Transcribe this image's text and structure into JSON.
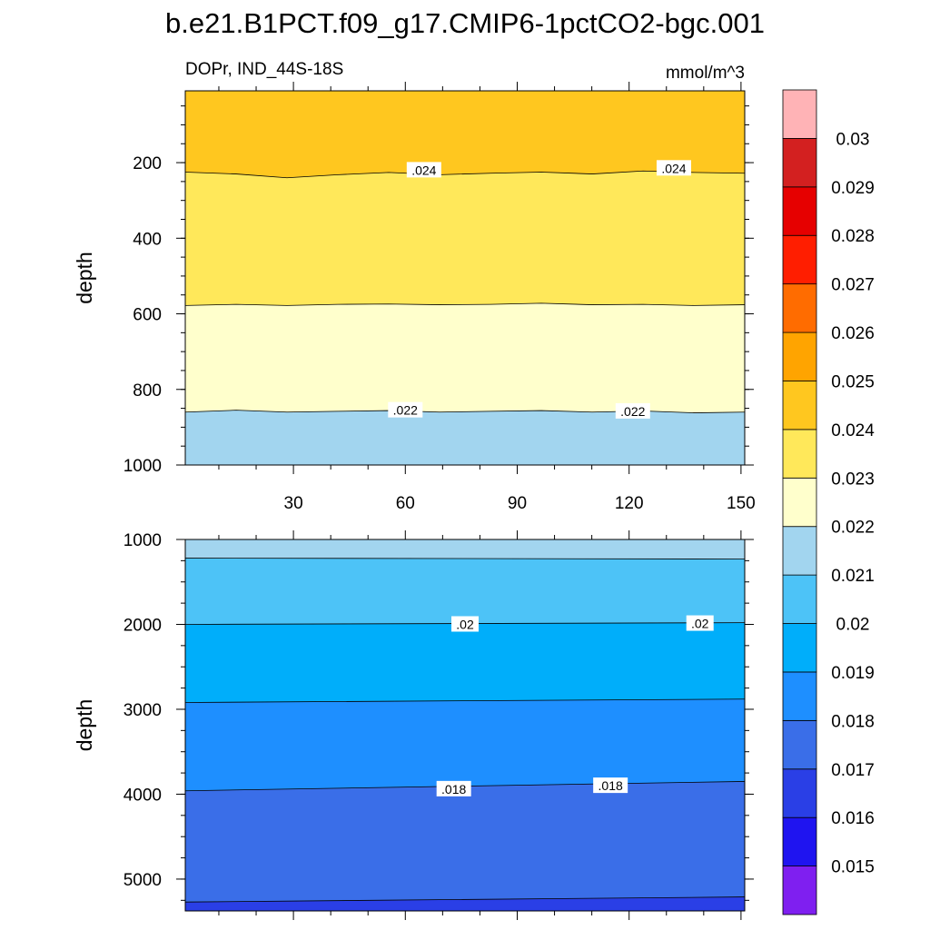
{
  "title": "b.e21.B1PCT.f09_g17.CMIP6-1pctCO2-bgc.001",
  "left_label": "DOPr, IND_44S-18S",
  "right_label": "mmol/m^3",
  "colors": {
    "levels": [
      "#7f1ff0",
      "#1f14f0",
      "#2a3fe6",
      "#3a6ee8",
      "#1e8fff",
      "#00aefa",
      "#4dc3f7",
      "#a2d5ef",
      "#ffffcc",
      "#ffe85a",
      "#ffc71f",
      "#ffa400",
      "#ff6c00",
      "#ff1e00",
      "#e60000",
      "#d32020",
      "#ffb3b6"
    ]
  },
  "chart_data": [
    {
      "type": "filled-contour",
      "panel": "top",
      "ylabel": "depth",
      "xlim": [
        1,
        151
      ],
      "ylim": [
        1000,
        10
      ],
      "x_ticks": [
        30,
        60,
        90,
        120,
        150
      ],
      "y_ticks": [
        200,
        400,
        600,
        800,
        1000
      ],
      "boundaries": [
        {
          "level": 0.024,
          "depth": [
            225,
            230,
            240,
            232,
            226,
            232,
            228,
            225,
            230,
            222,
            226,
            228
          ]
        },
        {
          "level": 0.023,
          "depth": [
            578,
            575,
            578,
            575,
            574,
            576,
            575,
            572,
            576,
            575,
            578,
            576
          ]
        },
        {
          "level": 0.022,
          "depth": [
            860,
            855,
            860,
            858,
            856,
            860,
            858,
            856,
            860,
            857,
            862,
            860
          ]
        }
      ],
      "contour_labels": [
        {
          "text": ".024",
          "x": 65,
          "y": 220
        },
        {
          "text": ".024",
          "x": 132,
          "y": 215
        },
        {
          "text": ".022",
          "x": 60,
          "y": 855
        },
        {
          "text": ".022",
          "x": 121,
          "y": 858
        }
      ]
    },
    {
      "type": "filled-contour",
      "panel": "bottom",
      "ylabel": "depth",
      "xlim": [
        1,
        151
      ],
      "ylim": [
        5375,
        1000
      ],
      "y_ticks": [
        1000,
        2000,
        3000,
        4000,
        5000
      ],
      "boundaries": [
        {
          "level": 0.021,
          "depth": [
            1220,
            1230
          ]
        },
        {
          "level": 0.02,
          "depth": [
            2000,
            1980
          ]
        },
        {
          "level": 0.019,
          "depth": [
            2920,
            2880
          ]
        },
        {
          "level": 0.018,
          "depth": [
            3960,
            3850
          ]
        },
        {
          "level": 0.017,
          "depth": [
            5270,
            5210
          ]
        }
      ],
      "contour_labels": [
        {
          "text": ".02",
          "x": 76,
          "y": 2000
        },
        {
          "text": ".02",
          "x": 139,
          "y": 1990
        },
        {
          "text": ".018",
          "x": 73,
          "y": 3940
        },
        {
          "text": ".018",
          "x": 115,
          "y": 3900
        }
      ]
    }
  ],
  "colorbar": {
    "labels": [
      "0.015",
      "0.016",
      "0.017",
      "0.018",
      "0.019",
      "0.02",
      "0.021",
      "0.022",
      "0.023",
      "0.024",
      "0.025",
      "0.026",
      "0.027",
      "0.028",
      "0.029",
      "0.03"
    ]
  }
}
